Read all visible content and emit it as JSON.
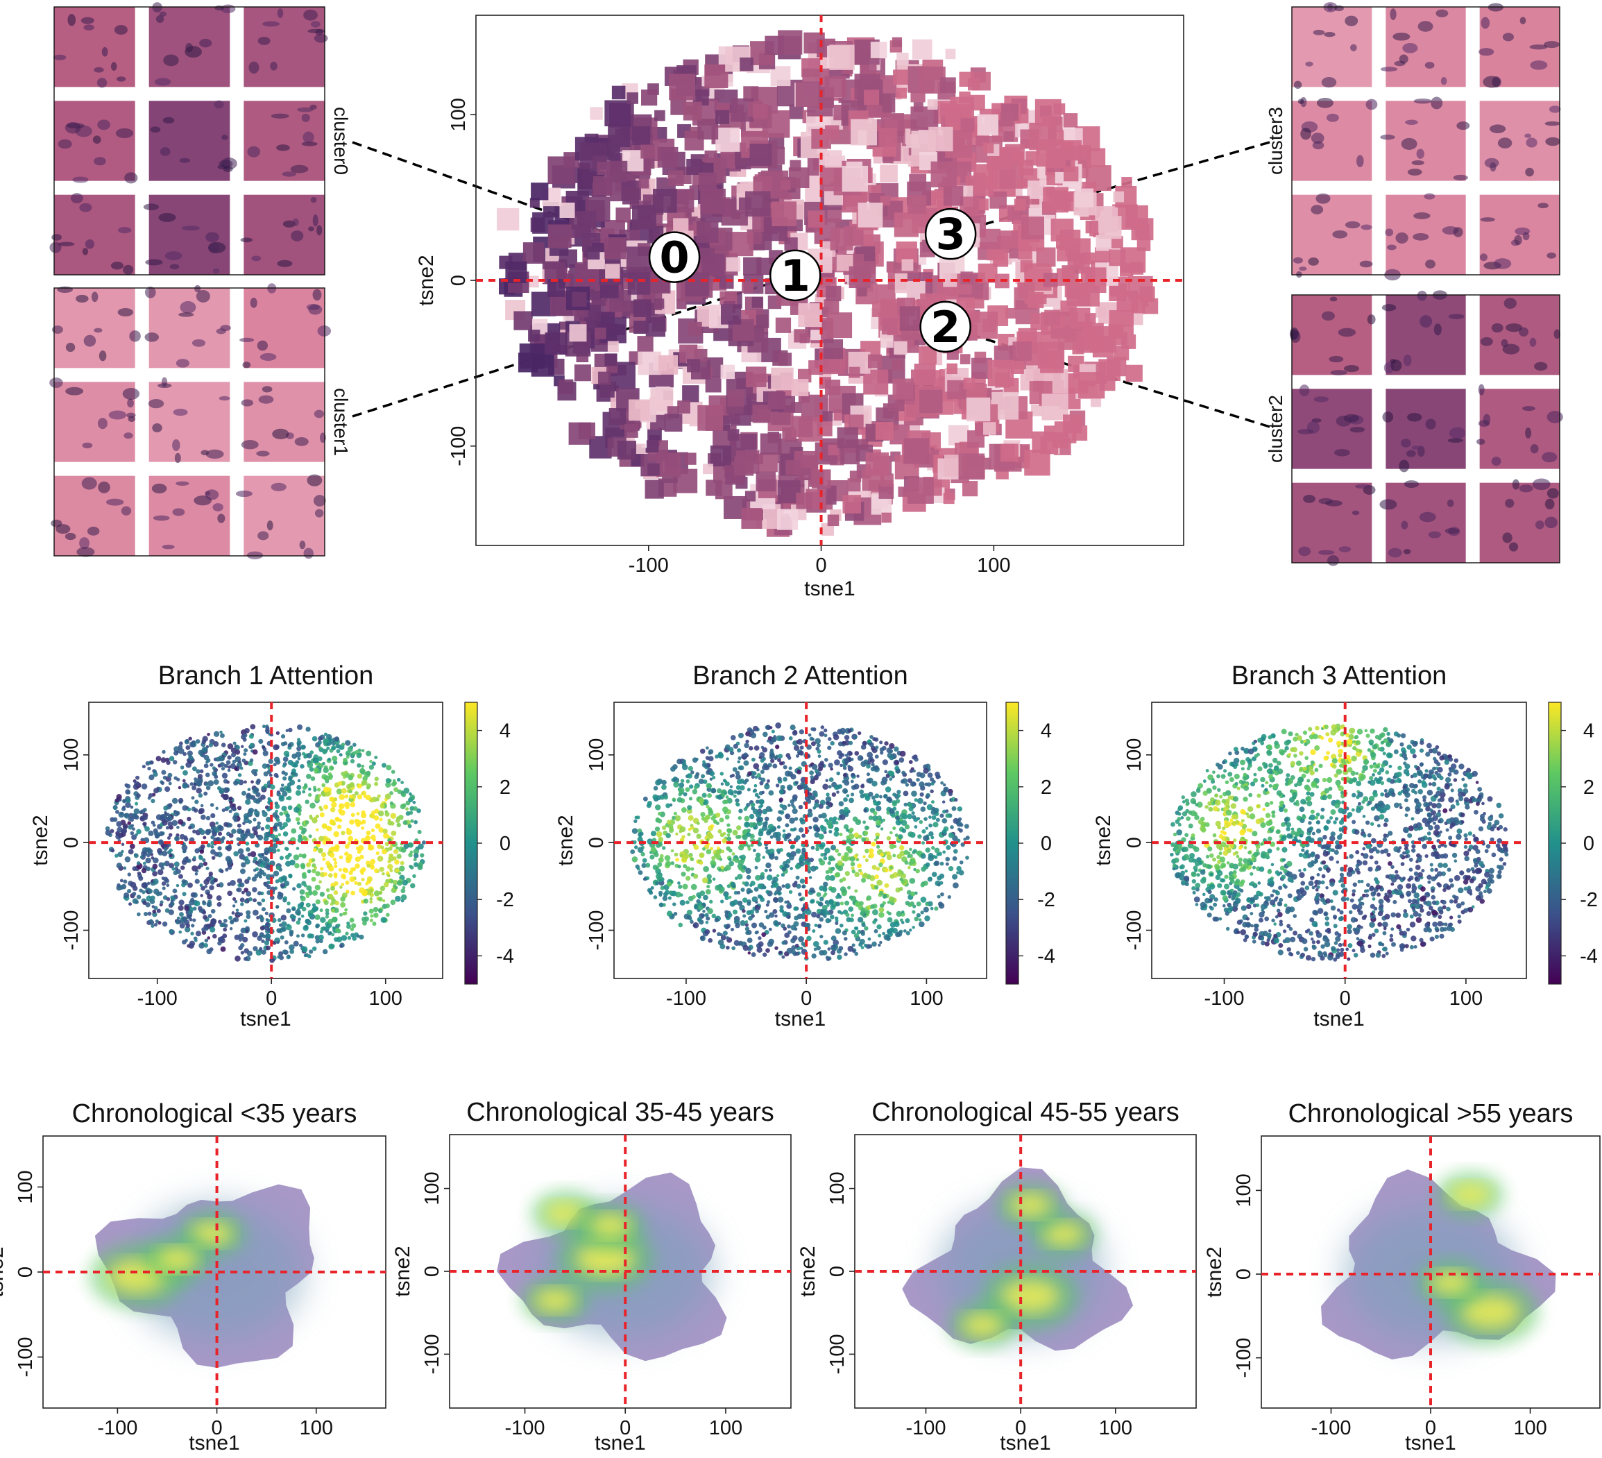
{
  "colors": {
    "reference_line": "#e8242a",
    "tissue_light": "#e7a3b8",
    "tissue_mid": "#cf6b8a",
    "tissue_dark": "#5b2f6a",
    "viridis": [
      "#440154",
      "#3b528b",
      "#21918c",
      "#5ec962",
      "#fde725"
    ]
  },
  "chart_data": [
    {
      "type": "scatter",
      "title": "",
      "xlabel": "tsne1",
      "ylabel": "tsne2",
      "xticks": [
        -100,
        0,
        100
      ],
      "yticks": [
        -100,
        0,
        100
      ],
      "xlim": [
        -200,
        210
      ],
      "ylim": [
        -160,
        160
      ],
      "reference_lines": {
        "x": 0,
        "y": 0
      },
      "marker": "histology image tiles",
      "cluster_markers": [
        {
          "label": "0",
          "x": -85,
          "y": 14
        },
        {
          "label": "1",
          "x": -15,
          "y": 3
        },
        {
          "label": "2",
          "x": 72,
          "y": -28
        },
        {
          "label": "3",
          "x": 75,
          "y": 28
        }
      ],
      "cluster_panels": [
        "cluster0",
        "cluster1",
        "cluster3",
        "cluster2"
      ]
    },
    {
      "type": "scatter",
      "title": "Branch 1 Attention",
      "xlabel": "tsne1",
      "ylabel": "tsne2",
      "xticks": [
        -100,
        0,
        100
      ],
      "yticks": [
        -100,
        0,
        100
      ],
      "xlim": [
        -160,
        150
      ],
      "ylim": [
        -155,
        160
      ],
      "reference_lines": {
        "x": 0,
        "y": 0
      },
      "colorbar": {
        "range": [
          -5,
          5
        ],
        "ticks": [
          4,
          2,
          0,
          -2,
          -4
        ],
        "colormap": "viridis"
      },
      "high_attention_regions": [
        {
          "x": 70,
          "y": 40
        },
        {
          "x": 75,
          "y": -40
        }
      ]
    },
    {
      "type": "scatter",
      "title": "Branch 2 Attention",
      "xlabel": "tsne1",
      "ylabel": "tsne2",
      "xticks": [
        -100,
        0,
        100
      ],
      "yticks": [
        -100,
        0,
        100
      ],
      "xlim": [
        -160,
        150
      ],
      "ylim": [
        -155,
        160
      ],
      "reference_lines": {
        "x": 0,
        "y": 0
      },
      "colorbar": {
        "range": [
          -5,
          5
        ],
        "ticks": [
          4,
          2,
          0,
          -2,
          -4
        ],
        "colormap": "viridis"
      },
      "high_attention_regions": [
        {
          "x": -90,
          "y": 0
        },
        {
          "x": 60,
          "y": -30
        }
      ]
    },
    {
      "type": "scatter",
      "title": "Branch 3 Attention",
      "xlabel": "tsne1",
      "ylabel": "tsne2",
      "xticks": [
        -100,
        0,
        100
      ],
      "yticks": [
        -100,
        0,
        100
      ],
      "xlim": [
        -160,
        150
      ],
      "ylim": [
        -155,
        160
      ],
      "reference_lines": {
        "x": 0,
        "y": 0
      },
      "colorbar": {
        "range": [
          -5,
          5
        ],
        "ticks": [
          4,
          2,
          0,
          -2,
          -4
        ],
        "colormap": "viridis"
      },
      "high_attention_regions": [
        {
          "x": -95,
          "y": 15
        },
        {
          "x": -10,
          "y": 110
        }
      ]
    },
    {
      "type": "heatmap",
      "title": "Chronological <35 years",
      "xlabel": "tsne1",
      "ylabel": "tsne2",
      "xticks": [
        -100,
        0,
        100
      ],
      "yticks": [
        -100,
        0,
        100
      ],
      "xlim": [
        -175,
        170
      ],
      "ylim": [
        -160,
        160
      ],
      "reference_lines": {
        "x": 0,
        "y": 0
      },
      "density_peaks": [
        {
          "x": -80,
          "y": -5
        },
        {
          "x": -5,
          "y": 45
        },
        {
          "x": -40,
          "y": 15
        }
      ]
    },
    {
      "type": "heatmap",
      "title": "Chronological 35-45 years",
      "xlabel": "tsne1",
      "ylabel": "tsne2",
      "xticks": [
        -100,
        0,
        100
      ],
      "yticks": [
        -100,
        0,
        100
      ],
      "xlim": [
        -175,
        165
      ],
      "ylim": [
        -165,
        165
      ],
      "reference_lines": {
        "x": 0,
        "y": 0
      },
      "density_peaks": [
        {
          "x": -20,
          "y": 15
        },
        {
          "x": -70,
          "y": -35
        },
        {
          "x": -60,
          "y": 70
        },
        {
          "x": -15,
          "y": 55
        }
      ]
    },
    {
      "type": "heatmap",
      "title": "Chronological 45-55 years",
      "xlabel": "tsne1",
      "ylabel": "tsne2",
      "xticks": [
        -100,
        0,
        100
      ],
      "yticks": [
        -100,
        0,
        100
      ],
      "xlim": [
        -175,
        185
      ],
      "ylim": [
        -165,
        165
      ],
      "reference_lines": {
        "x": 0,
        "y": 0
      },
      "density_peaks": [
        {
          "x": 10,
          "y": -30
        },
        {
          "x": -40,
          "y": -65
        },
        {
          "x": 45,
          "y": 45
        },
        {
          "x": 10,
          "y": 80
        }
      ]
    },
    {
      "type": "heatmap",
      "title": "Chronological >55 years",
      "xlabel": "tsne1",
      "ylabel": "tsne2",
      "xticks": [
        -100,
        0,
        100
      ],
      "yticks": [
        -100,
        0,
        100
      ],
      "xlim": [
        -170,
        170
      ],
      "ylim": [
        -160,
        165
      ],
      "reference_lines": {
        "x": 0,
        "y": 0
      },
      "density_peaks": [
        {
          "x": 60,
          "y": -45
        },
        {
          "x": 40,
          "y": 95
        },
        {
          "x": 20,
          "y": -10
        }
      ]
    }
  ]
}
